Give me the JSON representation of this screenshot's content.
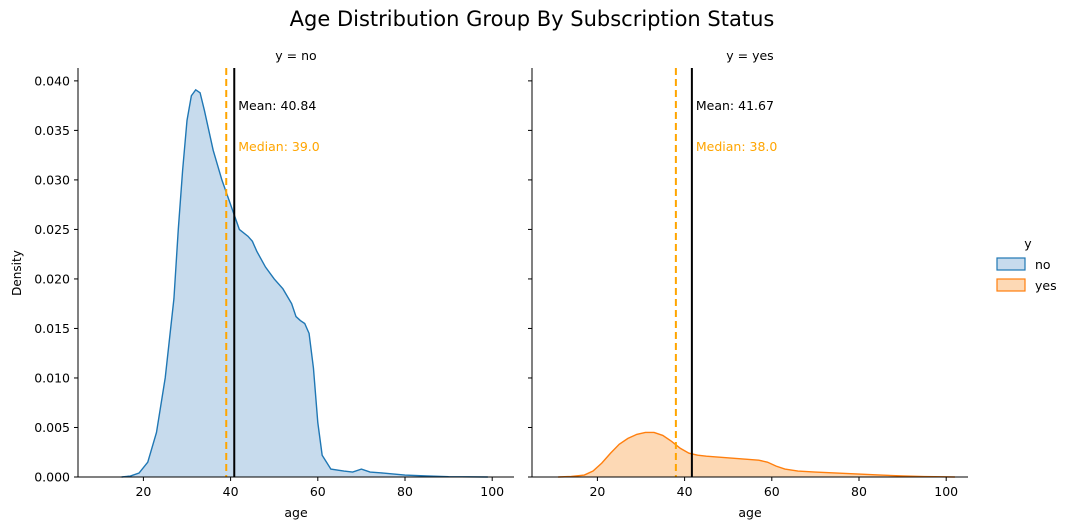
{
  "title": "Age Distribution Group By Subscription Status",
  "chart_data": {
    "type": "area",
    "title": "Age Distribution Group By Subscription Status",
    "ylabel": "Density",
    "xlabel": "age",
    "xlim": [
      5,
      105
    ],
    "ylim": [
      0,
      0.0413
    ],
    "x_ticks": [
      20,
      40,
      60,
      80,
      100
    ],
    "y_ticks": [
      0.0,
      0.005,
      0.01,
      0.015,
      0.02,
      0.025,
      0.03,
      0.035,
      0.04
    ],
    "grid": false,
    "legend": {
      "title": "y",
      "placement": "center-right",
      "entries": [
        {
          "label": "no",
          "color": "#1f77b4"
        },
        {
          "label": "yes",
          "color": "#ff7f0e"
        }
      ]
    },
    "panels": [
      {
        "title": "y = no",
        "series_name": "no",
        "color": "#1f77b4",
        "fill": "#c7dbed",
        "mean": 40.84,
        "median": 39.0,
        "mean_label": "Mean: 40.84",
        "median_label": "Median: 39.0",
        "points": [
          [
            15,
            0.0
          ],
          [
            17,
            0.0001
          ],
          [
            19,
            0.0004
          ],
          [
            21,
            0.0015
          ],
          [
            23,
            0.0045
          ],
          [
            25,
            0.01
          ],
          [
            27,
            0.018
          ],
          [
            28,
            0.025
          ],
          [
            29,
            0.031
          ],
          [
            30,
            0.036
          ],
          [
            31,
            0.0385
          ],
          [
            32,
            0.0391
          ],
          [
            33,
            0.0388
          ],
          [
            34,
            0.037
          ],
          [
            36,
            0.033
          ],
          [
            38,
            0.03
          ],
          [
            40,
            0.0275
          ],
          [
            42,
            0.025
          ],
          [
            44,
            0.0243
          ],
          [
            45,
            0.0238
          ],
          [
            46,
            0.0228
          ],
          [
            48,
            0.0212
          ],
          [
            50,
            0.02
          ],
          [
            52,
            0.019
          ],
          [
            54,
            0.0175
          ],
          [
            55,
            0.0162
          ],
          [
            56,
            0.0158
          ],
          [
            57,
            0.0155
          ],
          [
            58,
            0.0145
          ],
          [
            59,
            0.011
          ],
          [
            60,
            0.0055
          ],
          [
            61,
            0.0022
          ],
          [
            63,
            0.0008
          ],
          [
            66,
            0.0006
          ],
          [
            68,
            0.0005
          ],
          [
            70,
            0.0008
          ],
          [
            72,
            0.0005
          ],
          [
            75,
            0.0004
          ],
          [
            80,
            0.0002
          ],
          [
            85,
            0.0001
          ],
          [
            90,
            3e-05
          ],
          [
            99,
            0.0
          ]
        ]
      },
      {
        "title": "y = yes",
        "series_name": "yes",
        "color": "#ff7f0e",
        "fill": "#fdd9b5",
        "mean": 41.67,
        "median": 38.0,
        "mean_label": "Mean: 41.67",
        "median_label": "Median: 38.0",
        "points": [
          [
            11,
            0.0
          ],
          [
            14,
            5e-05
          ],
          [
            17,
            0.0002
          ],
          [
            19,
            0.0006
          ],
          [
            21,
            0.0014
          ],
          [
            23,
            0.0024
          ],
          [
            25,
            0.0033
          ],
          [
            27,
            0.0039
          ],
          [
            29,
            0.0043
          ],
          [
            31,
            0.0045
          ],
          [
            33,
            0.0045
          ],
          [
            35,
            0.0042
          ],
          [
            37,
            0.0036
          ],
          [
            39,
            0.0029
          ],
          [
            41,
            0.0024
          ],
          [
            43,
            0.0022
          ],
          [
            45,
            0.0021
          ],
          [
            48,
            0.002
          ],
          [
            51,
            0.0019
          ],
          [
            54,
            0.0018
          ],
          [
            57,
            0.0017
          ],
          [
            59,
            0.0015
          ],
          [
            61,
            0.0011
          ],
          [
            63,
            0.0008
          ],
          [
            66,
            0.0006
          ],
          [
            70,
            0.0005
          ],
          [
            75,
            0.0004
          ],
          [
            80,
            0.0003
          ],
          [
            85,
            0.0002
          ],
          [
            90,
            0.0001
          ],
          [
            95,
            4e-05
          ],
          [
            102,
            0.0
          ]
        ]
      }
    ]
  }
}
